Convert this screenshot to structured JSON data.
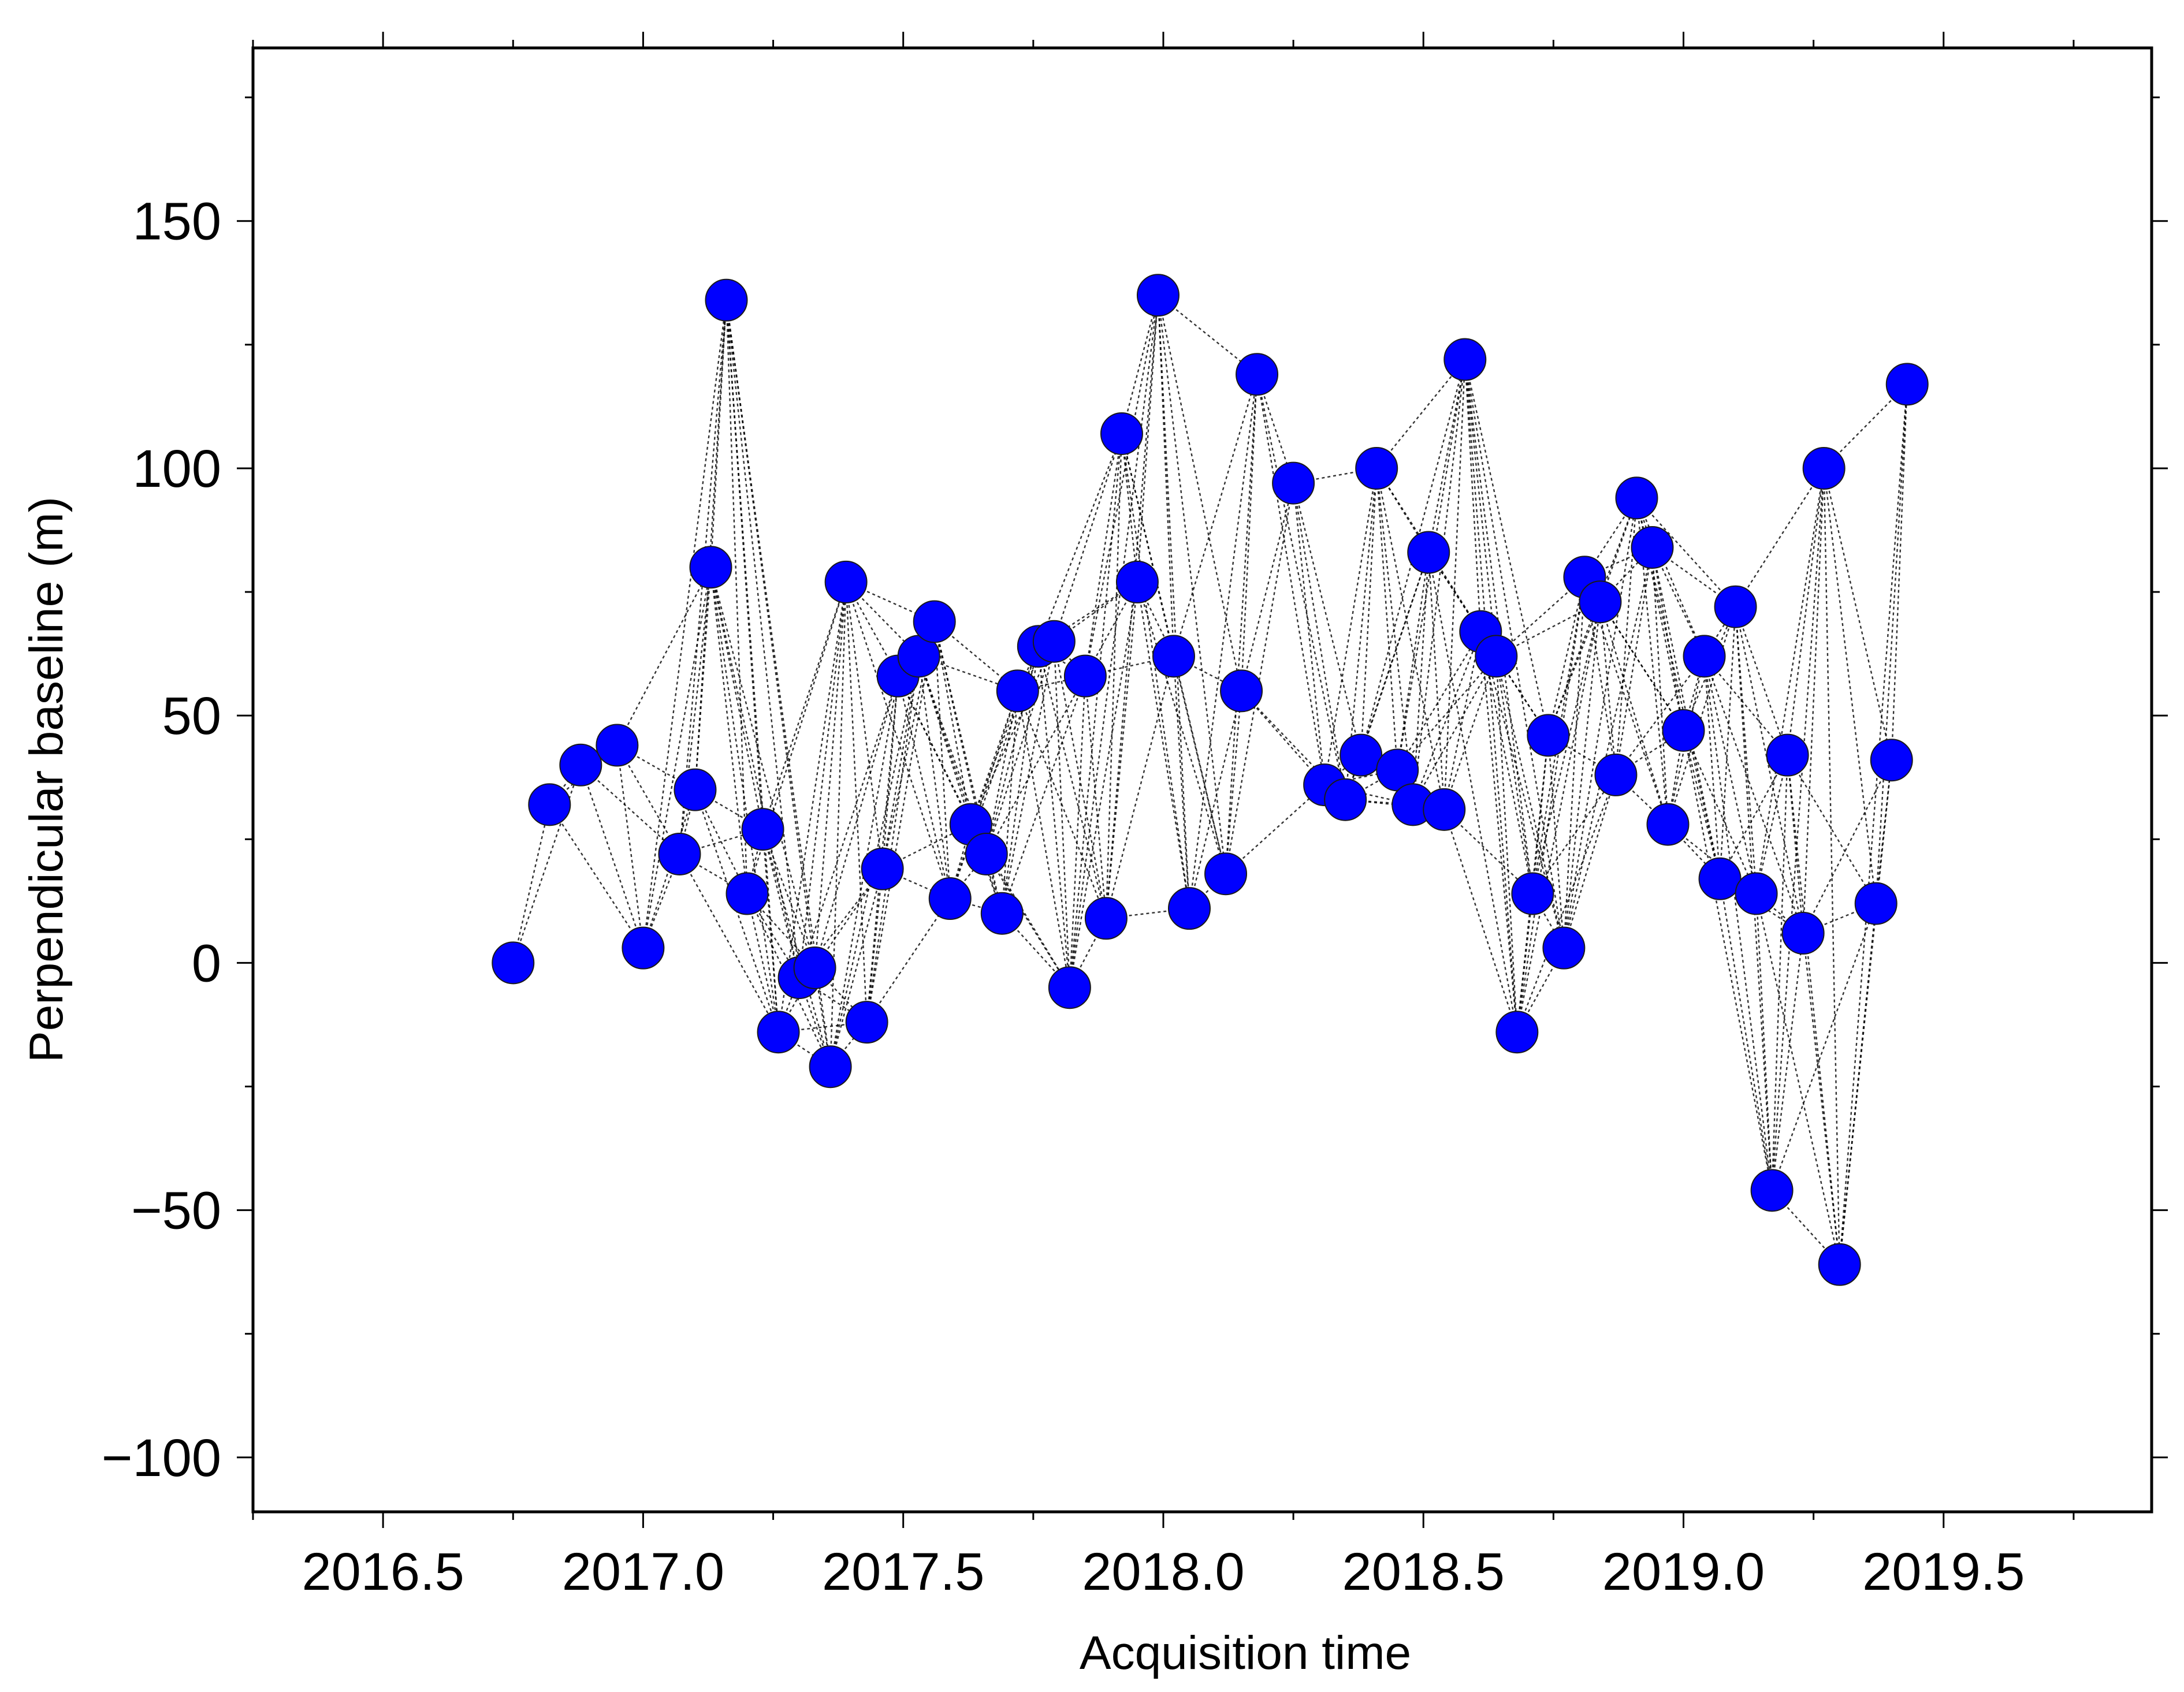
{
  "chart_data": {
    "type": "scatter",
    "title": "",
    "xlabel": "Acquisition time",
    "ylabel": "Perpendicular baseline (m)",
    "xlim": [
      2016.25,
      2019.9
    ],
    "ylim": [
      -111,
      185
    ],
    "x_ticks": [
      2016.5,
      2017.0,
      2017.5,
      2018.0,
      2018.5,
      2019.0,
      2019.5
    ],
    "x_tick_labels": [
      "2016.5",
      "2017.0",
      "2017.5",
      "2018.0",
      "2018.5",
      "2019.0",
      "2019.5"
    ],
    "y_ticks": [
      -100,
      -50,
      0,
      50,
      100,
      150
    ],
    "y_tick_labels": [
      "−100",
      "−50",
      "0",
      "50",
      "100",
      "150"
    ],
    "grid": false,
    "marker_color": "#0000ff",
    "line_color": "#000000",
    "points": [
      {
        "x": 2016.75,
        "y": 0
      },
      {
        "x": 2016.82,
        "y": 32
      },
      {
        "x": 2016.88,
        "y": 40
      },
      {
        "x": 2016.95,
        "y": 44
      },
      {
        "x": 2017.0,
        "y": 3
      },
      {
        "x": 2017.07,
        "y": 22
      },
      {
        "x": 2017.1,
        "y": 35
      },
      {
        "x": 2017.13,
        "y": 80
      },
      {
        "x": 2017.16,
        "y": 134
      },
      {
        "x": 2017.2,
        "y": 14
      },
      {
        "x": 2017.23,
        "y": 27
      },
      {
        "x": 2017.26,
        "y": -14
      },
      {
        "x": 2017.3,
        "y": -3
      },
      {
        "x": 2017.33,
        "y": -1
      },
      {
        "x": 2017.36,
        "y": -21
      },
      {
        "x": 2017.39,
        "y": 77
      },
      {
        "x": 2017.43,
        "y": -12
      },
      {
        "x": 2017.46,
        "y": 19
      },
      {
        "x": 2017.49,
        "y": 58
      },
      {
        "x": 2017.53,
        "y": 62
      },
      {
        "x": 2017.56,
        "y": 69
      },
      {
        "x": 2017.59,
        "y": 13
      },
      {
        "x": 2017.63,
        "y": 28
      },
      {
        "x": 2017.66,
        "y": 22
      },
      {
        "x": 2017.69,
        "y": 10
      },
      {
        "x": 2017.72,
        "y": 55
      },
      {
        "x": 2017.76,
        "y": 64
      },
      {
        "x": 2017.79,
        "y": 65
      },
      {
        "x": 2017.82,
        "y": -5
      },
      {
        "x": 2017.85,
        "y": 58
      },
      {
        "x": 2017.89,
        "y": 9
      },
      {
        "x": 2017.92,
        "y": 107
      },
      {
        "x": 2017.95,
        "y": 77
      },
      {
        "x": 2017.99,
        "y": 135
      },
      {
        "x": 2018.02,
        "y": 62
      },
      {
        "x": 2018.05,
        "y": 11
      },
      {
        "x": 2018.12,
        "y": 18
      },
      {
        "x": 2018.15,
        "y": 55
      },
      {
        "x": 2018.18,
        "y": 119
      },
      {
        "x": 2018.25,
        "y": 97
      },
      {
        "x": 2018.31,
        "y": 36
      },
      {
        "x": 2018.35,
        "y": 33
      },
      {
        "x": 2018.38,
        "y": 42
      },
      {
        "x": 2018.41,
        "y": 100
      },
      {
        "x": 2018.45,
        "y": 39
      },
      {
        "x": 2018.48,
        "y": 32
      },
      {
        "x": 2018.51,
        "y": 83
      },
      {
        "x": 2018.54,
        "y": 31
      },
      {
        "x": 2018.58,
        "y": 122
      },
      {
        "x": 2018.61,
        "y": 67
      },
      {
        "x": 2018.64,
        "y": 62
      },
      {
        "x": 2018.68,
        "y": -14
      },
      {
        "x": 2018.71,
        "y": 14
      },
      {
        "x": 2018.74,
        "y": 46
      },
      {
        "x": 2018.77,
        "y": 3
      },
      {
        "x": 2018.81,
        "y": 78
      },
      {
        "x": 2018.84,
        "y": 73
      },
      {
        "x": 2018.87,
        "y": 38
      },
      {
        "x": 2018.91,
        "y": 94
      },
      {
        "x": 2018.94,
        "y": 84
      },
      {
        "x": 2018.97,
        "y": 28
      },
      {
        "x": 2019.0,
        "y": 47
      },
      {
        "x": 2019.04,
        "y": 62
      },
      {
        "x": 2019.07,
        "y": 17
      },
      {
        "x": 2019.1,
        "y": 72
      },
      {
        "x": 2019.14,
        "y": 14
      },
      {
        "x": 2019.17,
        "y": -46
      },
      {
        "x": 2019.2,
        "y": 42
      },
      {
        "x": 2019.23,
        "y": 6
      },
      {
        "x": 2019.27,
        "y": 100
      },
      {
        "x": 2019.3,
        "y": -61
      },
      {
        "x": 2019.37,
        "y": 12
      },
      {
        "x": 2019.4,
        "y": 41
      },
      {
        "x": 2019.43,
        "y": 117
      }
    ]
  }
}
